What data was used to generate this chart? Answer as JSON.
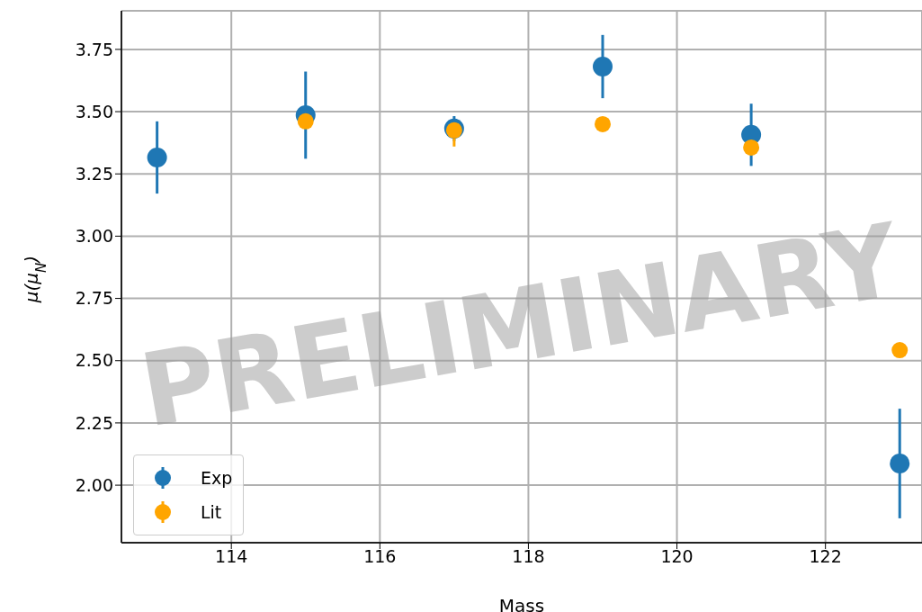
{
  "chart_data": {
    "type": "scatter",
    "xlabel": "Mass",
    "ylabel": "μ(μ$_{N}$)",
    "x": [
      113,
      115,
      117,
      119,
      121,
      123
    ],
    "series": [
      {
        "name": "Exp",
        "color": "#1f77b4",
        "values": [
          3.316,
          3.486,
          3.432,
          3.681,
          3.407,
          2.087
        ],
        "errors": [
          0.145,
          0.175,
          0.05,
          0.127,
          0.125,
          0.22
        ]
      },
      {
        "name": "Lit",
        "color": "#ffa500",
        "values": [
          null,
          3.461,
          3.425,
          3.45,
          3.356,
          2.542
        ],
        "errors": [
          null,
          null,
          [
            3.36,
            3.425
          ],
          null,
          null,
          null
        ]
      }
    ],
    "xlim": [
      112.52,
      123.3
    ],
    "xticks": [
      114,
      116,
      118,
      120,
      122
    ],
    "ylim": [
      1.769,
      3.905
    ],
    "yticks": [
      {
        "value": 2,
        "label": "2.00"
      },
      2.25,
      {
        "value": 2.5,
        "label": "2.50"
      },
      2.75,
      {
        "value": 3,
        "label": "3.00"
      },
      3.25,
      {
        "value": 3.5,
        "label": "3.50"
      },
      3.75
    ],
    "grid": true,
    "legend": "bottom left",
    "marker": "circle",
    "annotations": [
      "PRELIMINARY"
    ]
  }
}
